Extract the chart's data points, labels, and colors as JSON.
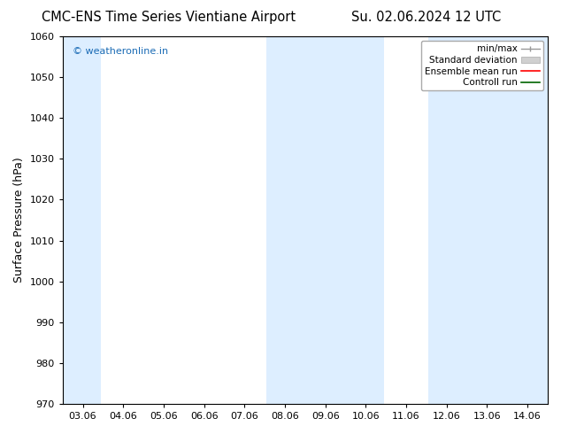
{
  "title_left": "CMC-ENS Time Series Vientiane Airport",
  "title_right": "Su. 02.06.2024 12 UTC",
  "ylabel": "Surface Pressure (hPa)",
  "ylim": [
    970,
    1060
  ],
  "yticks": [
    970,
    980,
    990,
    1000,
    1010,
    1020,
    1030,
    1040,
    1050,
    1060
  ],
  "x_labels": [
    "03.06",
    "04.06",
    "05.06",
    "06.06",
    "07.06",
    "08.06",
    "09.06",
    "10.06",
    "11.06",
    "12.06",
    "13.06",
    "14.06"
  ],
  "x_positions": [
    0,
    1,
    2,
    3,
    4,
    5,
    6,
    7,
    8,
    9,
    10,
    11
  ],
  "band_color": "#ddeeff",
  "watermark": "© weatheronline.in",
  "watermark_color": "#1a6bb5",
  "legend_items": [
    {
      "label": "min/max",
      "color": "#b0b0b0",
      "style": "errorbar"
    },
    {
      "label": "Standard deviation",
      "color": "#c8c8c8",
      "style": "bar"
    },
    {
      "label": "Ensemble mean run",
      "color": "red",
      "style": "line"
    },
    {
      "label": "Controll run",
      "color": "darkgreen",
      "style": "line"
    }
  ],
  "background_color": "#ffffff",
  "title_fontsize": 10.5,
  "axis_label_fontsize": 9,
  "tick_fontsize": 8,
  "watermark_fontsize": 8,
  "legend_fontsize": 7.5
}
